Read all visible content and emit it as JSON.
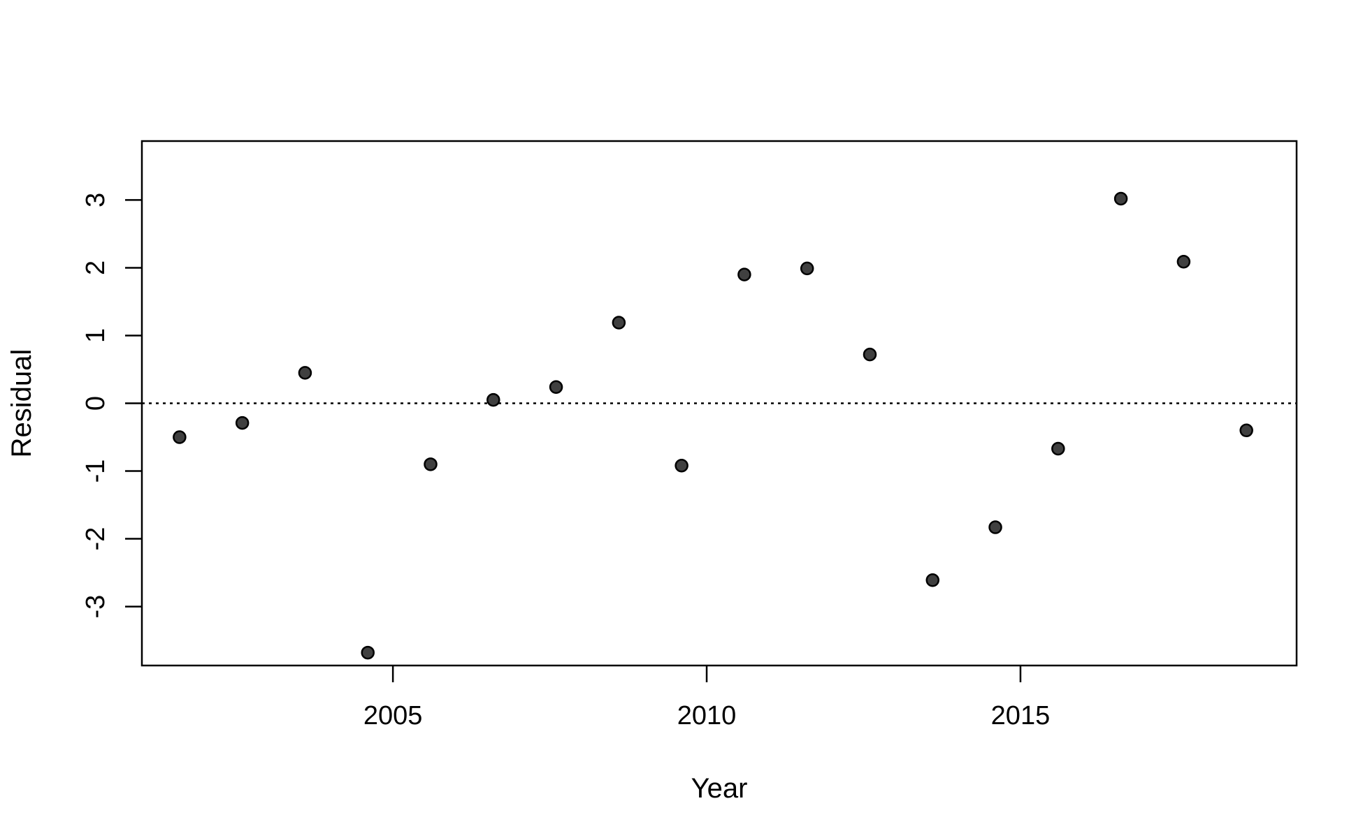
{
  "chart_data": {
    "type": "scatter",
    "title": "",
    "xlabel": "Year",
    "ylabel": "Residual",
    "xlim": [
      2001.0,
      2019.4
    ],
    "ylim": [
      -3.87,
      3.87
    ],
    "x_ticks": [
      2005,
      2010,
      2015
    ],
    "y_ticks": [
      -3,
      -2,
      -1,
      0,
      1,
      2,
      3
    ],
    "reference_line": {
      "y": 0,
      "style": "dotted"
    },
    "grid": false,
    "legend": "none",
    "colors": {
      "point_fill": "#404040",
      "point_stroke": "#000000",
      "axis": "#000000"
    },
    "points": [
      {
        "x": 2001.6,
        "y": -0.5
      },
      {
        "x": 2002.6,
        "y": -0.29
      },
      {
        "x": 2003.6,
        "y": 0.45
      },
      {
        "x": 2004.6,
        "y": -3.68
      },
      {
        "x": 2005.6,
        "y": -0.9
      },
      {
        "x": 2006.6,
        "y": 0.05
      },
      {
        "x": 2007.6,
        "y": 0.24
      },
      {
        "x": 2008.6,
        "y": 1.19
      },
      {
        "x": 2009.6,
        "y": -0.92
      },
      {
        "x": 2010.6,
        "y": 1.9
      },
      {
        "x": 2011.6,
        "y": 1.99
      },
      {
        "x": 2012.6,
        "y": 0.72
      },
      {
        "x": 2013.6,
        "y": -2.61
      },
      {
        "x": 2014.6,
        "y": -1.83
      },
      {
        "x": 2015.6,
        "y": -0.67
      },
      {
        "x": 2016.6,
        "y": 3.02
      },
      {
        "x": 2017.6,
        "y": 2.09
      },
      {
        "x": 2018.6,
        "y": -0.4
      }
    ]
  }
}
